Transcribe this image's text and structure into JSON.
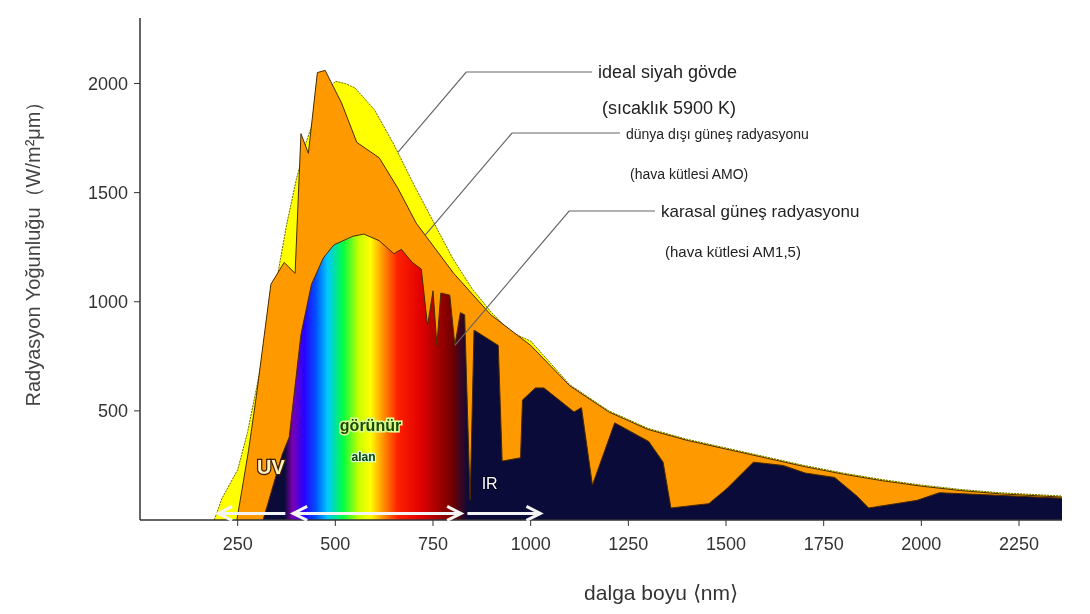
{
  "chart_data": {
    "type": "area",
    "xlabel": "dalga boyu ⟨nm⟩",
    "ylabel": "Radyasyon Yoğunluğu（W/m²μm）",
    "xlim": [
      0,
      2360
    ],
    "ylim": [
      0,
      2300
    ],
    "xticks": [
      250,
      500,
      750,
      1000,
      1250,
      1500,
      1750,
      2000,
      2250
    ],
    "yticks": [
      500,
      1000,
      1500,
      2000
    ],
    "grid": false,
    "series": [
      {
        "color": "#ffff00",
        "x": [
          190,
          210,
          250,
          275,
          300,
          325,
          350,
          375,
          400,
          425,
          450,
          475,
          500,
          525,
          550,
          600,
          650,
          700,
          750,
          800,
          850,
          900,
          950,
          1000,
          1100,
          1200,
          1300,
          1400,
          1500,
          1600,
          1700,
          1800,
          1900,
          2000,
          2100,
          2200,
          2360
        ],
        "values": [
          0,
          100,
          230,
          400,
          620,
          850,
          1100,
          1350,
          1560,
          1730,
          1860,
          1960,
          2010,
          2000,
          1980,
          1880,
          1720,
          1540,
          1370,
          1200,
          1060,
          950,
          860,
          820,
          620,
          500,
          420,
          370,
          330,
          290,
          250,
          215,
          185,
          160,
          140,
          125,
          110
        ]
      },
      {
        "color": "#ff9900",
        "x": [
          248,
          278,
          298,
          335,
          369,
          397,
          412,
          431,
          454,
          474,
          488,
          516,
          555,
          612,
          660,
          707,
          803,
          898,
          1000,
          1100,
          1200,
          1300,
          1400,
          1500,
          1600,
          1700,
          1800,
          1900,
          2000,
          2100,
          2200,
          2360
        ],
        "values": [
          0,
          320,
          570,
          1080,
          1180,
          1130,
          1770,
          1680,
          2050,
          2060,
          2010,
          1910,
          1730,
          1660,
          1520,
          1360,
          1130,
          940,
          800,
          615,
          495,
          415,
          365,
          325,
          285,
          245,
          210,
          180,
          155,
          135,
          120,
          105
        ]
      },
      {
        "color": "#0b0b3a",
        "x": [
          315,
          364,
          382,
          412,
          439,
          469,
          496,
          545,
          573,
          612,
          650,
          669,
          697,
          720,
          736,
          750,
          760,
          770,
          793,
          806,
          820,
          831,
          845,
          855,
          917,
          927,
          974,
          979,
          1012,
          1034,
          1111,
          1130,
          1158,
          1215,
          1302,
          1339,
          1359,
          1456,
          1503,
          1570,
          1646,
          1703,
          1778,
          1835,
          1865,
          1989,
          2046,
          2360
        ],
        "values": [
          0,
          300,
          380,
          850,
          1080,
          1200,
          1260,
          1300,
          1310,
          1280,
          1220,
          1240,
          1180,
          1150,
          890,
          1050,
          800,
          1040,
          1030,
          800,
          950,
          940,
          90,
          870,
          800,
          270,
          285,
          550,
          605,
          605,
          495,
          515,
          160,
          445,
          360,
          265,
          55,
          75,
          145,
          265,
          250,
          215,
          195,
          110,
          55,
          90,
          125,
          100
        ]
      }
    ],
    "annotations": [
      {
        "text": "ideal siyah gövde",
        "x": 660,
        "y": 1684
      },
      "(sıcaklık 5900 K)",
      {
        "text": "dünya dışı güneş radyasyonu",
        "x": 730,
        "y": 1305
      },
      "(hava kütlesi AMO)",
      {
        "text": "karasal güneş radyasyonu",
        "x": 806,
        "y": 800
      },
      "(hava kütlesi AM1,5)",
      "UV",
      "görünür",
      "alan",
      "IR"
    ]
  }
}
